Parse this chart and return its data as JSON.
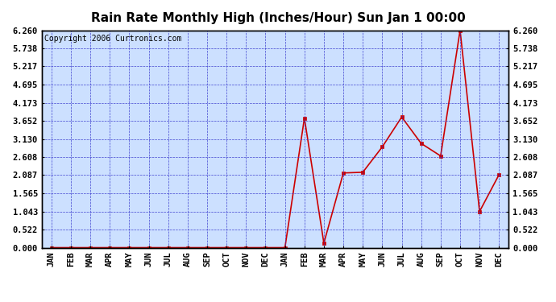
{
  "title": "Rain Rate Monthly High (Inches/Hour) Sun Jan 1 00:00",
  "copyright": "Copyright 2006 Curtronics.com",
  "x_labels": [
    "JAN",
    "FEB",
    "MAR",
    "APR",
    "MAY",
    "JUN",
    "JUL",
    "AUG",
    "SEP",
    "OCT",
    "NOV",
    "DEC",
    "JAN",
    "FEB",
    "MAR",
    "APR",
    "MAY",
    "JUN",
    "JUL",
    "AUG",
    "SEP",
    "OCT",
    "NOV",
    "DEC"
  ],
  "y_values": [
    0.0,
    0.0,
    0.0,
    0.0,
    0.0,
    0.0,
    0.0,
    0.0,
    0.0,
    0.0,
    0.0,
    0.0,
    0.0,
    3.73,
    0.13,
    2.15,
    2.17,
    2.9,
    3.76,
    3.0,
    2.64,
    6.26,
    1.04,
    2.1
  ],
  "y_ticks": [
    0.0,
    0.522,
    1.043,
    1.565,
    2.087,
    2.608,
    3.13,
    3.652,
    4.173,
    4.695,
    5.217,
    5.738,
    6.26
  ],
  "ylim": [
    0.0,
    6.26
  ],
  "line_color": "#cc0000",
  "marker_color": "#cc0000",
  "bg_color": "#ffffff",
  "plot_bg": "#cce0ff",
  "grid_color": "#3333cc",
  "border_color": "#000000",
  "title_fontsize": 11,
  "copyright_fontsize": 7,
  "tick_fontsize": 7.5,
  "label_fontsize": 7.5
}
